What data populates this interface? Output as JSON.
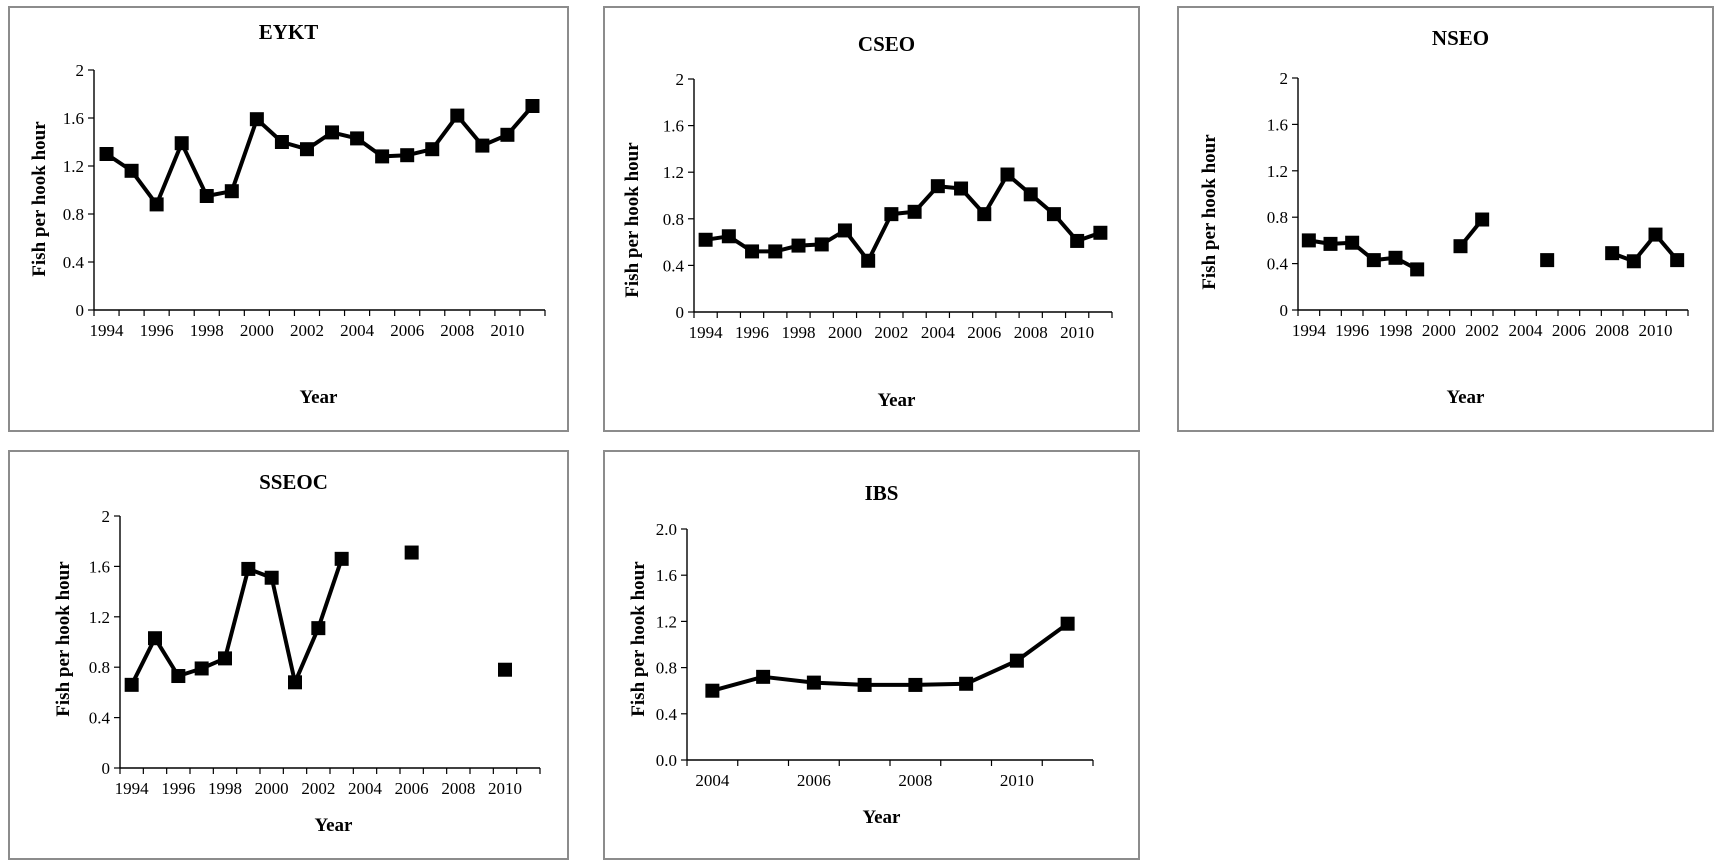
{
  "chart_data": [
    {
      "type": "line",
      "title": "EYKT",
      "xlabel": "Year",
      "ylabel": "Fish per hook hour",
      "xlim": [
        1993.5,
        2011.5
      ],
      "ylim": [
        0,
        2
      ],
      "xticks": [
        1994,
        1996,
        1998,
        2000,
        2002,
        2004,
        2006,
        2008,
        2010
      ],
      "yticks": [
        "0",
        "0.4",
        "0.8",
        "1.2",
        "1.6",
        "2"
      ],
      "series": [
        {
          "x": [
            1994,
            1995,
            1996,
            1997,
            1998,
            1999,
            2000,
            2001,
            2002,
            2003,
            2004,
            2005,
            2006,
            2007,
            2008,
            2009,
            2010,
            2011
          ],
          "values": [
            1.3,
            1.16,
            0.88,
            1.39,
            0.95,
            0.99,
            1.59,
            1.4,
            1.34,
            1.48,
            1.43,
            1.28,
            1.29,
            1.34,
            1.62,
            1.37,
            1.46,
            1.7
          ]
        }
      ]
    },
    {
      "type": "line",
      "title": "CSEO",
      "xlabel": "Year",
      "ylabel": "Fish per hook hour",
      "xlim": [
        1993.5,
        2011.5
      ],
      "ylim": [
        0,
        2
      ],
      "xticks": [
        1994,
        1996,
        1998,
        2000,
        2002,
        2004,
        2006,
        2008,
        2010
      ],
      "yticks": [
        "0",
        "0.4",
        "0.8",
        "1.2",
        "1.6",
        "2"
      ],
      "series": [
        {
          "x": [
            1994,
            1995,
            1996,
            1997,
            1998,
            1999,
            2000,
            2001,
            2002,
            2003,
            2004,
            2005,
            2006,
            2007,
            2008,
            2009,
            2010,
            2011
          ],
          "values": [
            0.62,
            0.65,
            0.52,
            0.52,
            0.57,
            0.58,
            0.7,
            0.44,
            0.84,
            0.86,
            1.08,
            1.06,
            0.84,
            1.18,
            1.01,
            0.84,
            0.61,
            0.68
          ]
        }
      ]
    },
    {
      "type": "line",
      "title": "NSEO",
      "xlabel": "Year",
      "ylabel": "Fish per hook hour",
      "xlim": [
        1993.5,
        2011.5
      ],
      "ylim": [
        0,
        2
      ],
      "xticks": [
        1994,
        1996,
        1998,
        2000,
        2002,
        2004,
        2006,
        2008,
        2010
      ],
      "yticks": [
        "0",
        "0.4",
        "0.8",
        "1.2",
        "1.6",
        "2"
      ],
      "series": [
        {
          "x": [
            1994,
            1995,
            1996,
            1997,
            1998,
            1999,
            2000,
            2001,
            2002,
            2003,
            2004,
            2005,
            2006,
            2007,
            2008,
            2009,
            2010,
            2011
          ],
          "values": [
            0.6,
            0.57,
            0.58,
            0.43,
            0.45,
            0.35,
            null,
            0.55,
            0.78,
            null,
            null,
            0.43,
            null,
            null,
            0.49,
            0.42,
            0.65,
            0.43
          ]
        }
      ]
    },
    {
      "type": "line",
      "title": "SSEOC",
      "xlabel": "Year",
      "ylabel": "Fish per hook hour",
      "xlim": [
        1993.5,
        2011.5
      ],
      "ylim": [
        0,
        2
      ],
      "xticks": [
        1994,
        1996,
        1998,
        2000,
        2002,
        2004,
        2006,
        2008,
        2010
      ],
      "yticks": [
        "0",
        "0.4",
        "0.8",
        "1.2",
        "1.6",
        "2"
      ],
      "series": [
        {
          "x": [
            1994,
            1995,
            1996,
            1997,
            1998,
            1999,
            2000,
            2001,
            2002,
            2003,
            2004,
            2005,
            2006,
            2007,
            2008,
            2009,
            2010,
            2011
          ],
          "values": [
            0.66,
            1.03,
            0.73,
            0.79,
            0.87,
            1.58,
            1.51,
            0.68,
            1.11,
            1.66,
            null,
            null,
            1.71,
            null,
            null,
            null,
            0.78,
            null
          ]
        }
      ]
    },
    {
      "type": "line",
      "title": "IBS",
      "xlabel": "Year",
      "ylabel": "Fish per hook hour",
      "xlim": [
        2003.5,
        2011.5
      ],
      "ylim": [
        0,
        2
      ],
      "xticks": [
        2004,
        2006,
        2008,
        2010
      ],
      "yticks": [
        "0.0",
        "0.4",
        "0.8",
        "1.2",
        "1.6",
        "2.0"
      ],
      "series": [
        {
          "x": [
            2004,
            2005,
            2006,
            2007,
            2008,
            2009,
            2010,
            2011
          ],
          "values": [
            0.6,
            0.72,
            0.67,
            0.65,
            0.65,
            0.66,
            0.86,
            1.18
          ]
        }
      ]
    }
  ]
}
